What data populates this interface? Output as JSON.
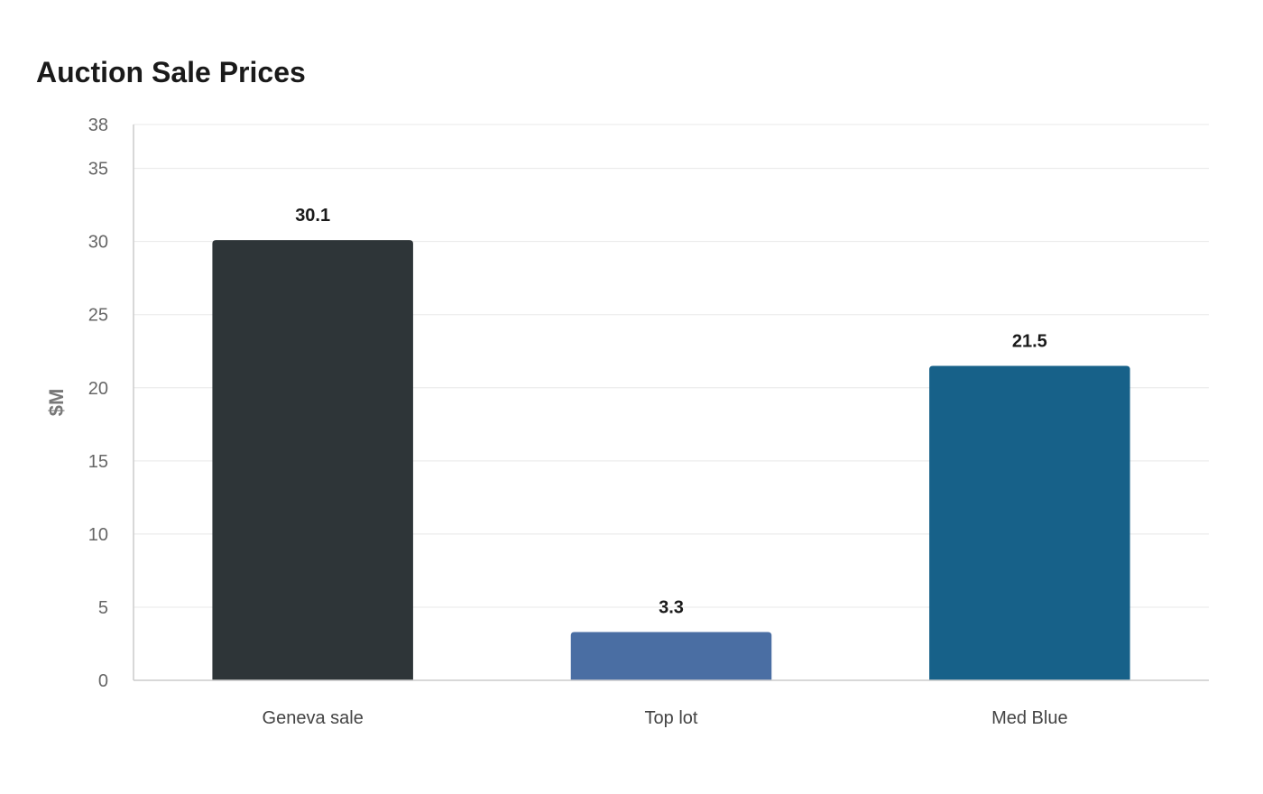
{
  "chart_data": {
    "type": "bar",
    "title": "Auction Sale Prices",
    "xlabel": "",
    "ylabel": "$M",
    "categories": [
      "Geneva sale",
      "Top lot",
      "Med Blue"
    ],
    "values": [
      30.1,
      3.3,
      21.5
    ],
    "value_labels": [
      "30.1",
      "3.3",
      "21.5"
    ],
    "colors": [
      "#2e3538",
      "#4a6ea3",
      "#176189"
    ],
    "ylim": [
      0,
      38
    ],
    "yticks": [
      0,
      5,
      10,
      15,
      20,
      25,
      30,
      35,
      38
    ],
    "grid": true,
    "legend": "none"
  }
}
